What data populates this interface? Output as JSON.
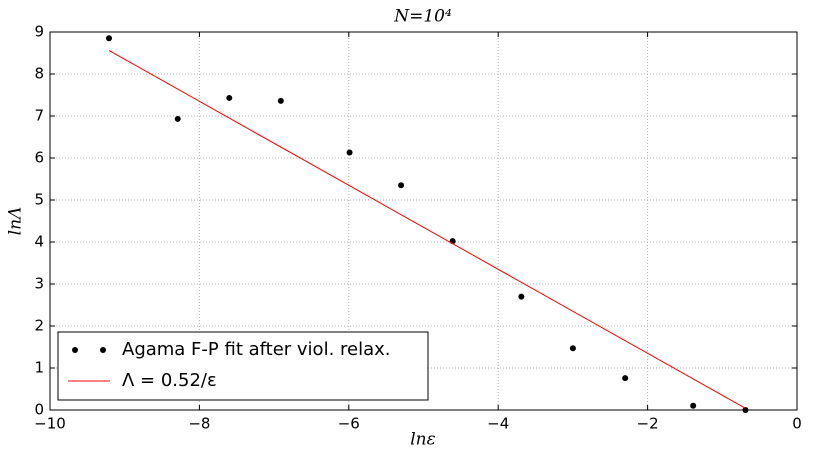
{
  "chart_data": {
    "type": "scatter",
    "title": "N=10⁴",
    "xlabel": "lnε",
    "ylabel": "lnΛ",
    "xlim": [
      -10,
      0
    ],
    "ylim": [
      0,
      9
    ],
    "xticks": [
      {
        "value": -10,
        "label": "−10"
      },
      {
        "value": -8,
        "label": "−8"
      },
      {
        "value": -6,
        "label": "−6"
      },
      {
        "value": -4,
        "label": "−4"
      },
      {
        "value": -2,
        "label": "−2"
      },
      0
    ],
    "yticks": [
      0,
      1,
      2,
      3,
      4,
      5,
      6,
      7,
      8,
      9
    ],
    "grid": true,
    "legend": "lower left",
    "series": [
      {
        "name": "Agama F-P fit after viol. relax.",
        "kind": "scatter",
        "color": "#000000",
        "x": [
          -9.21,
          -8.29,
          -7.6,
          -6.91,
          -5.99,
          -5.3,
          -4.61,
          -3.69,
          -3.0,
          -2.3,
          -1.39,
          -0.69
        ],
        "values": [
          8.85,
          6.93,
          7.43,
          7.36,
          6.13,
          5.35,
          4.02,
          2.7,
          1.47,
          0.76,
          0.1,
          0.0
        ]
      },
      {
        "name": "Λ = 0.52/ε",
        "kind": "line",
        "color": "#ff0000",
        "x": [
          -9.21,
          -0.69
        ],
        "values": [
          8.56,
          0.04
        ]
      }
    ]
  }
}
